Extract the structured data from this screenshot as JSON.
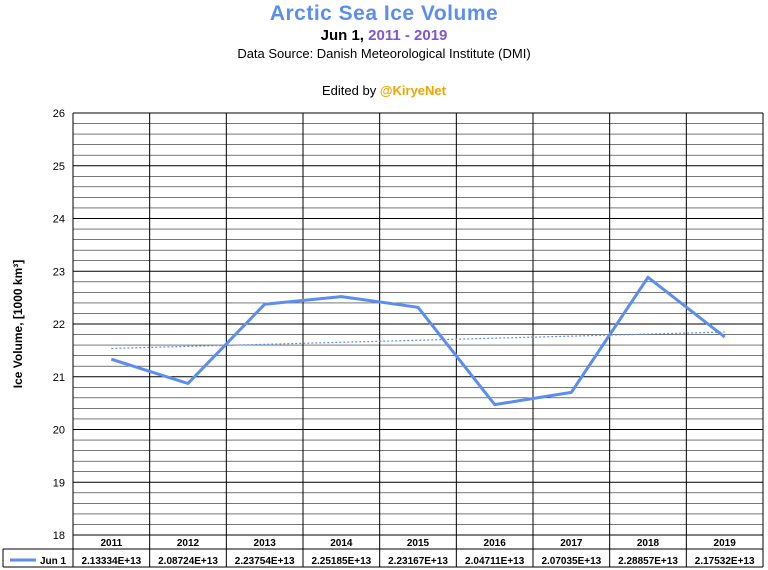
{
  "title": "Arctic Sea Ice Volume",
  "subtitle_date": "Jun 1,",
  "subtitle_years": "2011 - 2019",
  "source": "Data Source: Danish Meteorological Institute (DMI)",
  "edited_prefix": "Edited by",
  "edited_handle": "@KiryeNet",
  "colors": {
    "title": "#5b8ef0",
    "years": "#7b57d6",
    "handle": "#f0a500",
    "line": "#5b8ef0",
    "trend": "#5b8ef0"
  },
  "chart_data": {
    "type": "line",
    "title": "Arctic Sea Ice Volume",
    "ylabel": "Ice Volume, [1000 km³]",
    "ylim": [
      18,
      26
    ],
    "yticks": [
      "18",
      "19",
      "20",
      "21",
      "22",
      "23",
      "24",
      "25",
      "26"
    ],
    "grid": true,
    "trendline": true,
    "categories": [
      "2011",
      "2012",
      "2013",
      "2014",
      "2015",
      "2016",
      "2017",
      "2018",
      "2019"
    ],
    "series": [
      {
        "name": "Jun 1",
        "values": [
          21.3334,
          20.8724,
          22.3754,
          22.5185,
          22.3167,
          20.4711,
          20.7035,
          22.8857,
          21.7532
        ],
        "table_labels": [
          "2.13334E+13",
          "2.08724E+13",
          "2.23754E+13",
          "2.25185E+13",
          "2.23167E+13",
          "2.04711E+13",
          "2.07035E+13",
          "2.28857E+13",
          "2.17532E+13"
        ]
      }
    ]
  }
}
